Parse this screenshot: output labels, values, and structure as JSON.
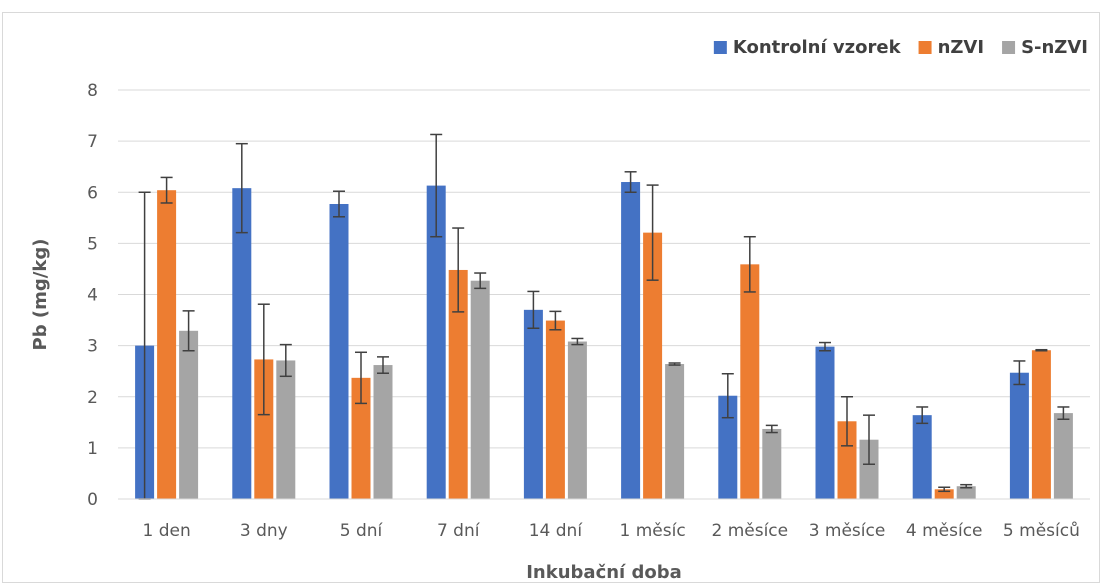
{
  "chart_data": {
    "type": "bar",
    "xlabel": "Inkubační doba",
    "ylabel": "Pb (mg/kg)",
    "ylim": [
      0,
      8
    ],
    "yticks": [
      0,
      1,
      2,
      3,
      4,
      5,
      6,
      7,
      8
    ],
    "grid": true,
    "legend": "top-right",
    "categories": [
      "1 den",
      "3 dny",
      "5 dní",
      "7 dní",
      "14 dní",
      "1 měsíc",
      "2 měsíce",
      "3 měsíce",
      "4 měsíce",
      "5 měsíců"
    ],
    "series": [
      {
        "name": "Kontrolní vzorek",
        "color": "#4472c4",
        "values": [
          3.0,
          6.08,
          5.77,
          6.13,
          3.7,
          6.2,
          2.02,
          2.98,
          1.64,
          2.47
        ],
        "errors": [
          3.0,
          0.87,
          0.25,
          1.0,
          0.36,
          0.2,
          0.43,
          0.08,
          0.16,
          0.23
        ]
      },
      {
        "name": "nZVI",
        "color": "#ed7d31",
        "values": [
          6.04,
          2.73,
          2.37,
          4.48,
          3.49,
          5.21,
          4.59,
          1.52,
          0.19,
          2.91
        ],
        "errors": [
          0.25,
          1.08,
          0.5,
          0.82,
          0.18,
          0.93,
          0.54,
          0.48,
          0.04,
          0.01
        ]
      },
      {
        "name": "S-nZVI",
        "color": "#a5a5a5",
        "values": [
          3.29,
          2.71,
          2.62,
          4.27,
          3.08,
          2.64,
          1.37,
          1.16,
          0.25,
          1.68
        ],
        "errors": [
          0.39,
          0.31,
          0.16,
          0.15,
          0.06,
          0.02,
          0.07,
          0.48,
          0.03,
          0.12
        ]
      }
    ]
  }
}
